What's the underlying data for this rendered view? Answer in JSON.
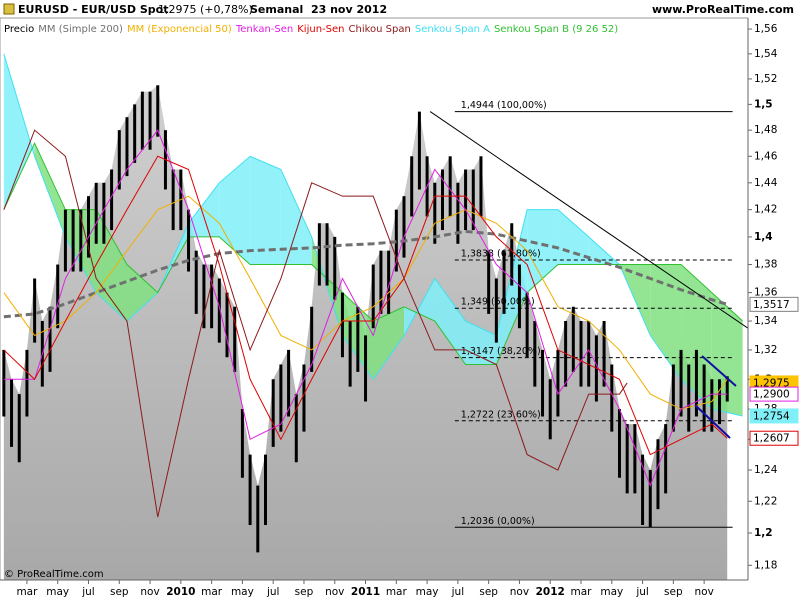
{
  "chart_data": {
    "type": "ohlc",
    "title": "EURUSD - EUR/USD Spot",
    "quote": "1,2975 (+0,78%)",
    "period": "Semanal  23 nov 2012",
    "site": "www.ProRealTime.com",
    "footer": "© ProRealTime.com",
    "yscale": "log",
    "ylim": [
      1.171,
      1.569
    ],
    "xlim": [
      -0.5,
      96.7
    ],
    "yticks": [
      {
        "value": 1.18,
        "label": "1,18"
      },
      {
        "value": 1.2,
        "label": "1,2"
      },
      {
        "value": 1.22,
        "label": "1,22"
      },
      {
        "value": 1.24,
        "label": "1,24"
      },
      {
        "value": 1.26,
        "label": "1,26"
      },
      {
        "value": 1.28,
        "label": "1,28"
      },
      {
        "value": 1.3,
        "label": "1,3"
      },
      {
        "value": 1.32,
        "label": "1,32"
      },
      {
        "value": 1.34,
        "label": "1,34"
      },
      {
        "value": 1.36,
        "label": "1,36"
      },
      {
        "value": 1.38,
        "label": "1,38"
      },
      {
        "value": 1.4,
        "label": "1,4"
      },
      {
        "value": 1.42,
        "label": "1,42"
      },
      {
        "value": 1.44,
        "label": "1,44"
      },
      {
        "value": 1.46,
        "label": "1,46"
      },
      {
        "value": 1.48,
        "label": "1,48"
      },
      {
        "value": 1.5,
        "label": "1,5"
      },
      {
        "value": 1.52,
        "label": "1,52"
      },
      {
        "value": 1.54,
        "label": "1,54"
      },
      {
        "value": 1.56,
        "label": "1,56"
      }
    ],
    "xticks": [
      {
        "value": 3,
        "label": "mar"
      },
      {
        "value": 7,
        "label": "may"
      },
      {
        "value": 11,
        "label": "jul"
      },
      {
        "value": 15,
        "label": "sep"
      },
      {
        "value": 19,
        "label": "nov"
      },
      {
        "value": 23,
        "label": "2010"
      },
      {
        "value": 27,
        "label": "mar"
      },
      {
        "value": 31,
        "label": "may"
      },
      {
        "value": 35,
        "label": "jul"
      },
      {
        "value": 39,
        "label": "sep"
      },
      {
        "value": 43,
        "label": "nov"
      },
      {
        "value": 47,
        "label": "2011"
      },
      {
        "value": 51,
        "label": "mar"
      },
      {
        "value": 55,
        "label": "may"
      },
      {
        "value": 59,
        "label": "jul"
      },
      {
        "value": 63,
        "label": "sep"
      },
      {
        "value": 67,
        "label": "nov"
      },
      {
        "value": 71,
        "label": "2012"
      },
      {
        "value": 75,
        "label": "mar"
      },
      {
        "value": 79,
        "label": "may"
      },
      {
        "value": 83,
        "label": "jul"
      },
      {
        "value": 87,
        "label": "sep"
      },
      {
        "value": 91,
        "label": "nov"
      }
    ],
    "price": {
      "name": "Precio",
      "color": "#000000",
      "high": [
        1.32,
        1.3,
        1.29,
        1.32,
        1.37,
        1.34,
        1.35,
        1.38,
        1.42,
        1.42,
        1.42,
        1.43,
        1.44,
        1.44,
        1.45,
        1.48,
        1.49,
        1.5,
        1.51,
        1.51,
        1.515,
        1.48,
        1.45,
        1.45,
        1.42,
        1.39,
        1.38,
        1.38,
        1.37,
        1.36,
        1.35,
        1.28,
        1.25,
        1.23,
        1.25,
        1.3,
        1.31,
        1.32,
        1.29,
        1.31,
        1.35,
        1.41,
        1.41,
        1.4,
        1.36,
        1.34,
        1.35,
        1.33,
        1.38,
        1.39,
        1.39,
        1.42,
        1.43,
        1.46,
        1.4944,
        1.46,
        1.44,
        1.45,
        1.46,
        1.44,
        1.45,
        1.45,
        1.46,
        1.39,
        1.37,
        1.39,
        1.41,
        1.38,
        1.36,
        1.34,
        1.32,
        1.3,
        1.32,
        1.34,
        1.35,
        1.34,
        1.34,
        1.33,
        1.34,
        1.31,
        1.28,
        1.27,
        1.27,
        1.25,
        1.24,
        1.26,
        1.27,
        1.31,
        1.32,
        1.31,
        1.32,
        1.31,
        1.3,
        1.3,
        1.302
      ],
      "low": [
        1.275,
        1.255,
        1.245,
        1.275,
        1.325,
        1.295,
        1.305,
        1.335,
        1.375,
        1.375,
        1.375,
        1.385,
        1.395,
        1.395,
        1.405,
        1.435,
        1.445,
        1.455,
        1.465,
        1.465,
        1.475,
        1.435,
        1.405,
        1.405,
        1.375,
        1.345,
        1.335,
        1.335,
        1.325,
        1.315,
        1.305,
        1.235,
        1.205,
        1.188,
        1.205,
        1.255,
        1.265,
        1.275,
        1.245,
        1.265,
        1.305,
        1.365,
        1.365,
        1.355,
        1.315,
        1.295,
        1.305,
        1.285,
        1.335,
        1.345,
        1.345,
        1.375,
        1.385,
        1.415,
        1.435,
        1.415,
        1.395,
        1.405,
        1.415,
        1.395,
        1.405,
        1.405,
        1.415,
        1.345,
        1.325,
        1.345,
        1.365,
        1.335,
        1.315,
        1.295,
        1.275,
        1.26,
        1.275,
        1.295,
        1.305,
        1.295,
        1.295,
        1.285,
        1.295,
        1.265,
        1.235,
        1.225,
        1.225,
        1.205,
        1.2036,
        1.215,
        1.225,
        1.265,
        1.275,
        1.265,
        1.275,
        1.265,
        1.265,
        1.27,
        1.285
      ]
    },
    "indicators": [
      {
        "name": "MM (Simple 200)",
        "color": "#707070",
        "width": 3,
        "dashed": true,
        "x": [
          0,
          4,
          8,
          12,
          16,
          20,
          24,
          28,
          32,
          36,
          40,
          44,
          48,
          52,
          56,
          60,
          64,
          68,
          72,
          76,
          80,
          84,
          88,
          92,
          94
        ],
        "values": [
          1.343,
          1.345,
          1.352,
          1.36,
          1.368,
          1.376,
          1.383,
          1.388,
          1.39,
          1.391,
          1.392,
          1.394,
          1.395,
          1.397,
          1.4,
          1.404,
          1.402,
          1.397,
          1.392,
          1.385,
          1.378,
          1.37,
          1.362,
          1.355,
          1.3517
        ]
      },
      {
        "name": "MM (Exponencial 50)",
        "color": "#f0b000",
        "width": 1,
        "dashed": false,
        "x": [
          0,
          4,
          8,
          12,
          16,
          20,
          24,
          28,
          32,
          36,
          40,
          44,
          48,
          52,
          56,
          60,
          64,
          68,
          72,
          76,
          80,
          84,
          88,
          92,
          94
        ],
        "values": [
          1.36,
          1.33,
          1.34,
          1.36,
          1.39,
          1.42,
          1.43,
          1.41,
          1.37,
          1.33,
          1.32,
          1.34,
          1.35,
          1.37,
          1.41,
          1.42,
          1.41,
          1.39,
          1.35,
          1.34,
          1.32,
          1.29,
          1.28,
          1.285,
          1.3
        ]
      },
      {
        "name": "Tenkan-Sen",
        "color": "#e020e0",
        "width": 1,
        "dashed": false,
        "x": [
          0,
          4,
          8,
          12,
          16,
          20,
          24,
          28,
          32,
          36,
          40,
          44,
          48,
          52,
          56,
          60,
          64,
          68,
          72,
          76,
          80,
          84,
          88,
          92,
          94
        ],
        "values": [
          1.3,
          1.3,
          1.37,
          1.41,
          1.45,
          1.48,
          1.42,
          1.35,
          1.26,
          1.27,
          1.31,
          1.37,
          1.33,
          1.4,
          1.45,
          1.42,
          1.38,
          1.36,
          1.29,
          1.32,
          1.28,
          1.23,
          1.28,
          1.29,
          1.29
        ]
      },
      {
        "name": "Kijun-Sen",
        "color": "#e00000",
        "width": 1,
        "dashed": false,
        "x": [
          0,
          4,
          8,
          12,
          16,
          20,
          24,
          28,
          32,
          36,
          40,
          44,
          48,
          52,
          56,
          60,
          64,
          68,
          72,
          76,
          80,
          84,
          88,
          92,
          94
        ],
        "values": [
          1.32,
          1.3,
          1.34,
          1.38,
          1.42,
          1.46,
          1.45,
          1.38,
          1.3,
          1.26,
          1.3,
          1.34,
          1.34,
          1.37,
          1.43,
          1.43,
          1.4,
          1.38,
          1.32,
          1.31,
          1.3,
          1.25,
          1.26,
          1.27,
          1.2607
        ]
      },
      {
        "name": "Chikou Span",
        "color": "#8b1a1a",
        "width": 1,
        "dashed": false,
        "x": [
          0,
          4,
          8,
          12,
          16,
          20,
          24,
          28,
          32,
          36,
          40,
          44,
          48,
          52,
          56,
          60,
          64,
          68,
          72,
          76,
          80,
          81
        ],
        "values": [
          1.42,
          1.48,
          1.46,
          1.37,
          1.34,
          1.21,
          1.3,
          1.39,
          1.32,
          1.37,
          1.44,
          1.43,
          1.43,
          1.37,
          1.32,
          1.32,
          1.31,
          1.25,
          1.24,
          1.29,
          1.29,
          1.2975
        ]
      }
    ],
    "cloud": {
      "x": [
        0,
        4,
        8,
        12,
        16,
        20,
        24,
        28,
        32,
        36,
        40,
        44,
        48,
        52,
        56,
        60,
        64,
        68,
        72,
        76,
        80,
        84,
        88,
        92,
        96
      ],
      "series": [
        {
          "name": "Senkou Span A",
          "color": "#40e0f0",
          "fill": "#80f0f8",
          "values": [
            1.54,
            1.46,
            1.4,
            1.36,
            1.34,
            1.36,
            1.41,
            1.44,
            1.46,
            1.45,
            1.4,
            1.33,
            1.3,
            1.33,
            1.37,
            1.34,
            1.33,
            1.42,
            1.42,
            1.4,
            1.38,
            1.33,
            1.3,
            1.28,
            1.2754
          ]
        },
        {
          "name": "Senkou Span B (9 26 52)",
          "color": "#30c030",
          "fill": "#80e080",
          "values": [
            1.42,
            1.47,
            1.42,
            1.42,
            1.38,
            1.36,
            1.4,
            1.4,
            1.38,
            1.38,
            1.38,
            1.36,
            1.34,
            1.35,
            1.34,
            1.31,
            1.31,
            1.36,
            1.38,
            1.38,
            1.38,
            1.38,
            1.38,
            1.36,
            1.34
          ]
        }
      ]
    },
    "fib_x": [
      58.6,
      94.7
    ],
    "fib_levels": [
      {
        "value": 1.4944,
        "label": "1,4944 (100,00%)"
      },
      {
        "value": 1.3833,
        "label": "1,3833 (61,80%)"
      },
      {
        "value": 1.349,
        "label": "1,349 (50,00%)"
      },
      {
        "value": 1.3147,
        "label": "1,3147 (38,20%)"
      },
      {
        "value": 1.2722,
        "label": "1,2722 (23,60%)"
      },
      {
        "value": 1.2036,
        "label": "1,2036 (0,00%)"
      }
    ],
    "trendline": {
      "x": [
        55.4,
        96.7
      ],
      "values": [
        1.4944,
        1.335
      ]
    },
    "last_values": [
      {
        "value": 1.3517,
        "label": "1,3517",
        "color": "#808080",
        "filled": false
      },
      {
        "value": 1.2975,
        "label": "1,2975",
        "color": "#ffc400",
        "filled": true
      },
      {
        "value": 1.29,
        "label": "1,2900",
        "color": "#e020e0",
        "filled": false
      },
      {
        "value": 1.2754,
        "label": "1,2754",
        "color": "#80f0f8",
        "filled": true
      },
      {
        "value": 1.2607,
        "label": "1,2607",
        "color": "#e00000",
        "filled": false
      }
    ]
  }
}
